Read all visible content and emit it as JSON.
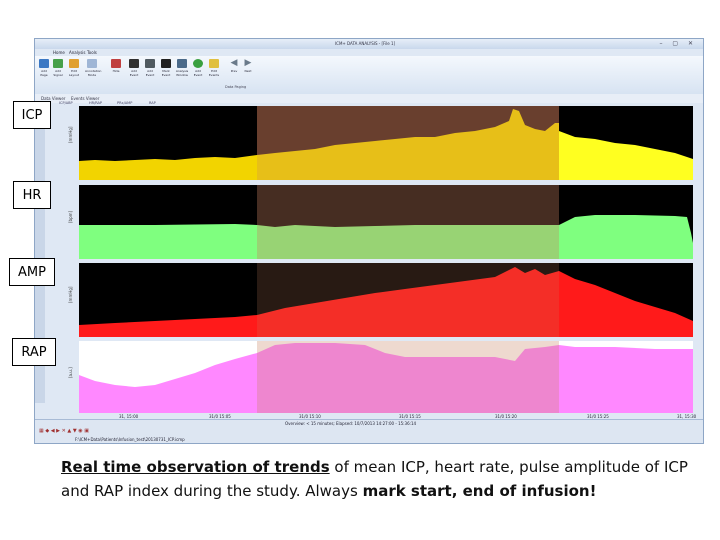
{
  "caption": {
    "underlined": "Real time observation of trends",
    "text1": " of mean ICP, heart rate, pulse amplitude of ICP and RAP index during the study. Always ",
    "bold": "mark start, end of infusion!"
  },
  "labels": {
    "icp": "ICP",
    "hr": "HR",
    "amp": "AMP",
    "rap": "RAP"
  },
  "window": {
    "title": "ICM+ DATA ANALYSIS - [File 1]"
  },
  "ribbon": {
    "tabs": [
      "Home",
      "Analysis",
      "Tools"
    ],
    "buttons": [
      "Add Page",
      "Add Signal",
      "Edit Layout",
      "Annotation Mode",
      "Hide",
      "Add Event",
      "Add Event",
      "Mark Event",
      "Analysis Window",
      "Add Event",
      "Edit Events",
      "Prev",
      "Next"
    ],
    "group_label": "Data Paging"
  },
  "viewtabs": [
    "Data Viewer",
    "Events Viewer"
  ],
  "signal_tabs": [
    "ICP/ABP",
    "HR/RAP",
    "PRx/AMP",
    "RAP"
  ],
  "axes": {
    "time_labels": [
      "31, 15:00",
      "31/0 15:05",
      "31/0 15:10",
      "31/0 15:15",
      "31/0 15:20",
      "31/0 15:25",
      "31, 15:30"
    ],
    "status_text": "Overview: < 15 minutes; Elapsed: 10/7/2013 14:27:00 - 15:36:14"
  },
  "file_path": "F:\\ICM+Data\\Patients\\Infusion_test\\20130731_ICP.icmp",
  "colors": {
    "icp": "#f2d400",
    "hr": "#7fff7f",
    "amp": "#ff1a1a",
    "rap": "#ff88ff",
    "infusion": "#c88060"
  }
}
